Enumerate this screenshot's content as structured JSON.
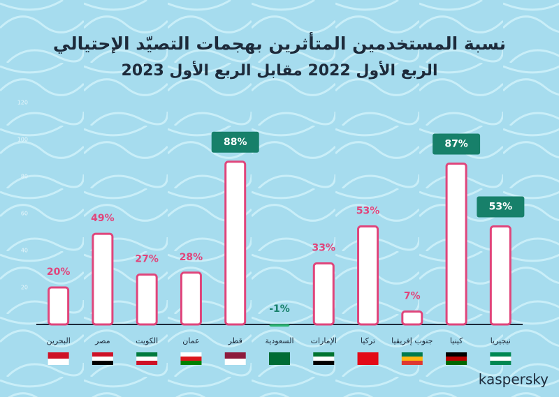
{
  "chart_data": {
    "type": "bar",
    "title": "نسبة المستخدمين المتأثرين بهجمات التصيّد الإحتيالي",
    "subtitle": "الربع الأول 2022 مقابل الربع الأول 2023",
    "categories": [
      "البحرين",
      "مصر",
      "الكويت",
      "عمان",
      "قطر",
      "السعودية",
      "الإمارات",
      "تركيا",
      "جنوب إفريقيا",
      "كينيا",
      "نيجيريا"
    ],
    "values": [
      20,
      49,
      27,
      28,
      88,
      -1,
      33,
      53,
      7,
      87,
      53
    ],
    "value_labels": [
      "20%",
      "49%",
      "27%",
      "28%",
      "88%",
      "-1%",
      "33%",
      "53%",
      "7%",
      "87%",
      "53%"
    ],
    "color": "#e0457b",
    "negative_color": "#2bb673",
    "ylim": [
      0,
      120
    ],
    "yticks": [
      20,
      40,
      60,
      80,
      100,
      120
    ],
    "grid": false,
    "brand": "kaspersky"
  }
}
